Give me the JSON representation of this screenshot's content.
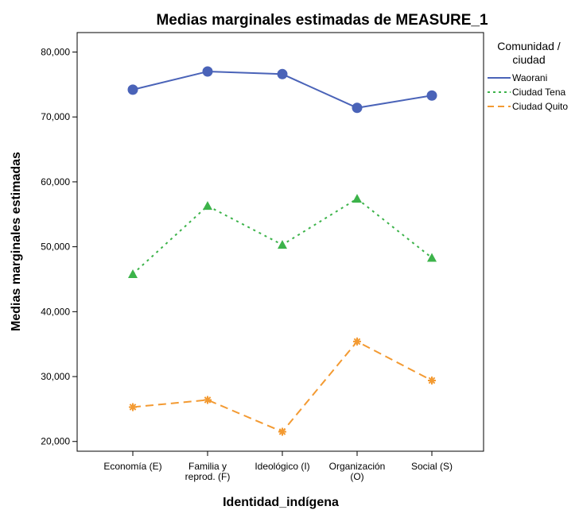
{
  "chart_data": {
    "type": "line",
    "title": "Medias marginales estimadas de MEASURE_1",
    "xlabel": "Identidad_indígena",
    "ylabel": "Medias marginales estimadas",
    "categories": [
      [
        "Economía (E)"
      ],
      [
        "Familia y",
        "reprod. (F)"
      ],
      [
        "Ideológico (I)"
      ],
      [
        "Organización",
        "(O)"
      ],
      [
        "Social (S)"
      ]
    ],
    "yticks": [
      20000,
      30000,
      40000,
      50000,
      60000,
      70000,
      80000
    ],
    "ytick_labels": [
      "20,000",
      "30,000",
      "40,000",
      "50,000",
      "60,000",
      "70,000",
      "80,000"
    ],
    "ylim": [
      18500,
      83000
    ],
    "grid": false,
    "legend": {
      "title": [
        "Comunidad /",
        "ciudad"
      ],
      "position": "right"
    },
    "series": [
      {
        "name": "Waorani",
        "values": [
          74200,
          77000,
          76600,
          71400,
          73300
        ],
        "color": "#4a63b8",
        "line": "solid",
        "marker": "circle"
      },
      {
        "name": "Ciudad Tena",
        "values": [
          45800,
          56300,
          50300,
          57400,
          48300
        ],
        "color": "#3cb34a",
        "line": "dotted",
        "marker": "triangle"
      },
      {
        "name": "Ciudad Quito",
        "values": [
          25300,
          26400,
          21500,
          35400,
          29400
        ],
        "color": "#f39a32",
        "line": "dashed",
        "marker": "asterisk"
      }
    ]
  }
}
